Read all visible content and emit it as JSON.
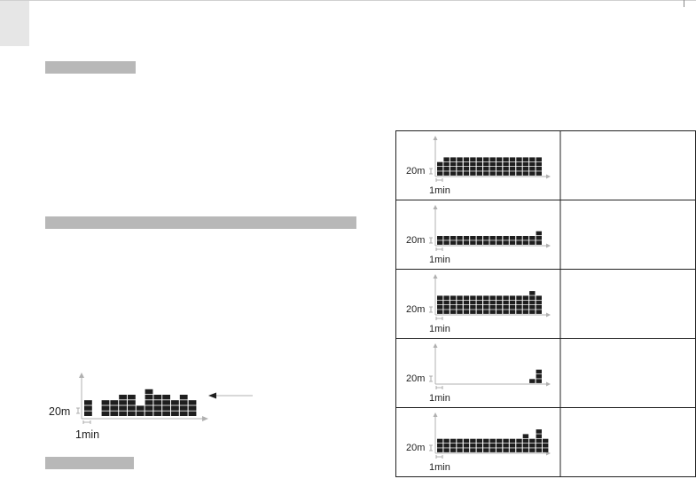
{
  "labels": {
    "time_unit": "1min",
    "value_unit": "20m"
  },
  "main_chart": {
    "columns": [
      3,
      0,
      3,
      3,
      4,
      4,
      2,
      5,
      4,
      4,
      3,
      4,
      3
    ]
  },
  "table": {
    "rows": [
      {
        "columns": [
          3,
          4,
          4,
          4,
          4,
          4,
          4,
          4,
          4,
          4,
          4,
          4,
          4,
          4,
          4,
          4
        ]
      },
      {
        "columns": [
          2,
          2,
          2,
          2,
          2,
          2,
          2,
          2,
          2,
          2,
          2,
          2,
          2,
          2,
          2,
          3
        ]
      },
      {
        "columns": [
          4,
          4,
          4,
          4,
          4,
          4,
          4,
          4,
          4,
          4,
          4,
          4,
          4,
          4,
          5,
          4
        ]
      },
      {
        "columns": [
          0,
          0,
          0,
          0,
          0,
          0,
          0,
          0,
          0,
          0,
          0,
          0,
          0,
          0,
          1,
          3
        ]
      },
      {
        "columns": [
          3,
          3,
          3,
          3,
          3,
          3,
          3,
          3,
          3,
          3,
          3,
          3,
          3,
          4,
          3,
          5,
          3
        ]
      }
    ]
  }
}
